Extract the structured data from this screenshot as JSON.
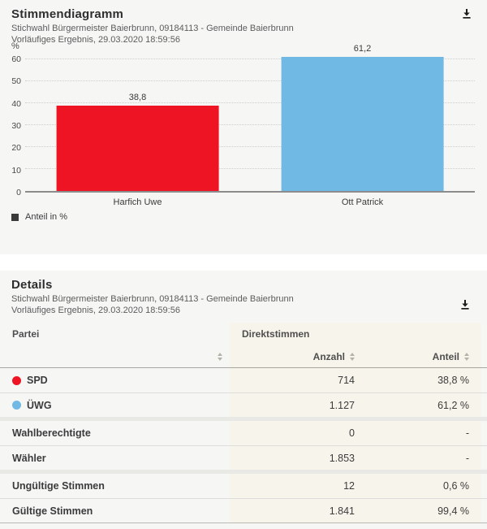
{
  "colors": {
    "card_bg": "#f6f6f5",
    "table_accent_bg": "#f7f4eb",
    "spd_red": "#ee1423",
    "uwg_blue": "#71b9e5"
  },
  "chart_card": {
    "title": "Stimmendiagramm",
    "subtitle_line1": "Stichwahl Bürgermeister Baierbrunn, 09184113 - Gemeinde Baierbrunn",
    "subtitle_line2": "Vorläufiges Ergebnis, 29.03.2020 18:59:56",
    "unit_label": "%",
    "legend_label": "Anteil in %"
  },
  "chart_data": {
    "type": "bar",
    "categories": [
      "Harfich Uwe",
      "Ott Patrick"
    ],
    "values": [
      38.8,
      61.2
    ],
    "value_labels": [
      "38,8",
      "61,2"
    ],
    "bar_colors": [
      "#ee1423",
      "#71b9e5"
    ],
    "title": "Stimmendiagramm",
    "xlabel": "",
    "ylabel": "%",
    "ylim": [
      0,
      60
    ],
    "yticks": [
      0,
      10,
      20,
      30,
      40,
      50,
      60
    ],
    "grid": "dotted-horizontal",
    "legend": [
      "Anteil in %"
    ],
    "legend_position": "bottom-left"
  },
  "details_card": {
    "title": "Details",
    "subtitle_line1": "Stichwahl Bürgermeister Baierbrunn, 09184113 - Gemeinde Baierbrunn",
    "subtitle_line2": "Vorläufiges Ergebnis, 29.03.2020 18:59:56",
    "table": {
      "col_group_party": "Partei",
      "col_group_direkt": "Direktstimmen",
      "col_anzahl": "Anzahl",
      "col_anteil": "Anteil",
      "party_rows": [
        {
          "label": "SPD",
          "color": "#ee1423",
          "anzahl": "714",
          "anteil": "38,8 %"
        },
        {
          "label": "ÜWG",
          "color": "#71b9e5",
          "anzahl": "1.127",
          "anteil": "61,2 %"
        }
      ],
      "electorate_rows": [
        {
          "label": "Wahlberechtigte",
          "anzahl": "0",
          "anteil": "-"
        },
        {
          "label": "Wähler",
          "anzahl": "1.853",
          "anteil": "-"
        }
      ],
      "validity_rows": [
        {
          "label": "Ungültige Stimmen",
          "anzahl": "12",
          "anteil": "0,6 %"
        },
        {
          "label": "Gültige Stimmen",
          "anzahl": "1.841",
          "anteil": "99,4 %"
        }
      ]
    }
  }
}
